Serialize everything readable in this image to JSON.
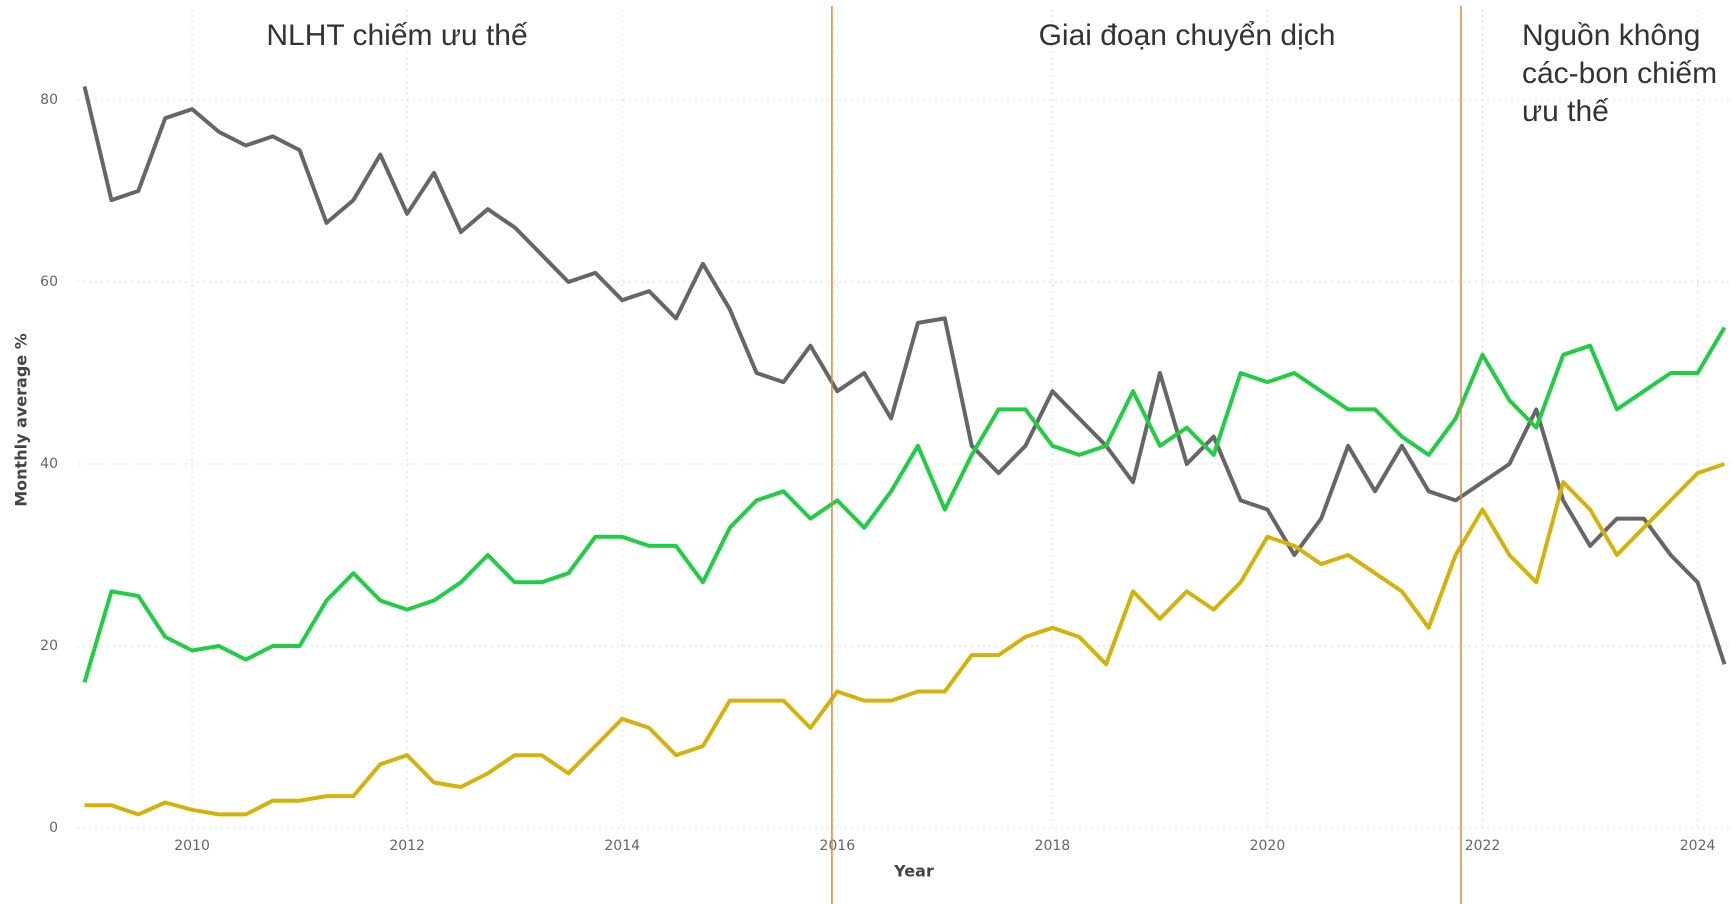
{
  "chart_data": {
    "type": "line",
    "x_label": "Year",
    "y_label": "Monthly average %",
    "annotations": [
      {
        "lines": [
          "NLHT chiếm ưu thế"
        ]
      },
      {
        "lines": [
          "Giai đoạn chuyển dịch"
        ]
      },
      {
        "lines": [
          "Nguồn không",
          "các-bon chiếm",
          "ưu thế"
        ]
      }
    ],
    "vlines": [
      2015.95,
      2021.8
    ],
    "vline_color": "#e8823a",
    "x": [
      2009.0,
      2009.25,
      2009.5,
      2009.75,
      2010.0,
      2010.25,
      2010.5,
      2010.75,
      2011.0,
      2011.25,
      2011.5,
      2011.75,
      2012.0,
      2012.25,
      2012.5,
      2012.75,
      2013.0,
      2013.25,
      2013.5,
      2013.75,
      2014.0,
      2014.25,
      2014.5,
      2014.75,
      2015.0,
      2015.25,
      2015.5,
      2015.75,
      2016.0,
      2016.25,
      2016.5,
      2016.75,
      2017.0,
      2017.25,
      2017.5,
      2017.75,
      2018.0,
      2018.25,
      2018.5,
      2018.75,
      2019.0,
      2019.25,
      2019.5,
      2019.75,
      2020.0,
      2020.25,
      2020.5,
      2020.75,
      2021.0,
      2021.25,
      2021.5,
      2021.75,
      2022.0,
      2022.25,
      2022.5,
      2022.75,
      2023.0,
      2023.25,
      2023.5,
      2023.75,
      2024.0,
      2024.25
    ],
    "series": [
      {
        "color": "#666666",
        "values": [
          81.5,
          69,
          70,
          78,
          79,
          76.5,
          75,
          76,
          74.5,
          66.5,
          69,
          74,
          67.5,
          72,
          65.5,
          68,
          66,
          63,
          60,
          61,
          58,
          59,
          56,
          62,
          57,
          50,
          49,
          53,
          48,
          50,
          45,
          55.5,
          56,
          42,
          39,
          42,
          48,
          45,
          42,
          38,
          50,
          40,
          43,
          36,
          35,
          30,
          34,
          42,
          37,
          42,
          37,
          36,
          38,
          40,
          46,
          36,
          31,
          34,
          34,
          30,
          27,
          18
        ]
      },
      {
        "color": "#22cc44",
        "values": [
          16,
          26,
          25.5,
          21,
          19.5,
          20,
          18.5,
          20,
          20,
          25,
          28,
          25,
          24,
          25,
          27,
          30,
          27,
          27,
          28,
          32,
          32,
          31,
          31,
          27,
          33,
          36,
          37,
          34,
          36,
          33,
          37,
          42,
          35,
          41,
          46,
          46,
          42,
          41,
          42,
          48,
          42,
          44,
          41,
          50,
          49,
          50,
          48,
          46,
          46,
          43,
          41,
          45,
          52,
          47,
          44,
          52,
          53,
          46,
          48,
          50,
          50,
          55
        ]
      },
      {
        "color": "#d4b20c",
        "values": [
          2.5,
          2.5,
          1.5,
          2.8,
          2,
          1.5,
          1.5,
          3,
          3,
          3.5,
          3.5,
          7,
          8,
          5,
          4.5,
          6,
          8,
          8,
          6,
          9,
          12,
          11,
          8,
          9,
          14,
          14,
          14,
          11,
          15,
          14,
          14,
          15,
          15,
          19,
          19,
          21,
          22,
          21,
          18,
          26,
          23,
          26,
          24,
          27,
          32,
          31,
          29,
          30,
          28,
          26,
          22,
          30,
          35,
          30,
          27,
          38,
          35,
          30,
          33,
          36,
          39,
          40
        ]
      }
    ],
    "xlim": [
      2008.93,
      2024.32
    ],
    "ylim": [
      0,
      90
    ],
    "xticks": [
      2010,
      2012,
      2014,
      2016,
      2018,
      2020,
      2022,
      2024
    ],
    "yticks": [
      0,
      20,
      40,
      60,
      80
    ],
    "grid": true
  }
}
